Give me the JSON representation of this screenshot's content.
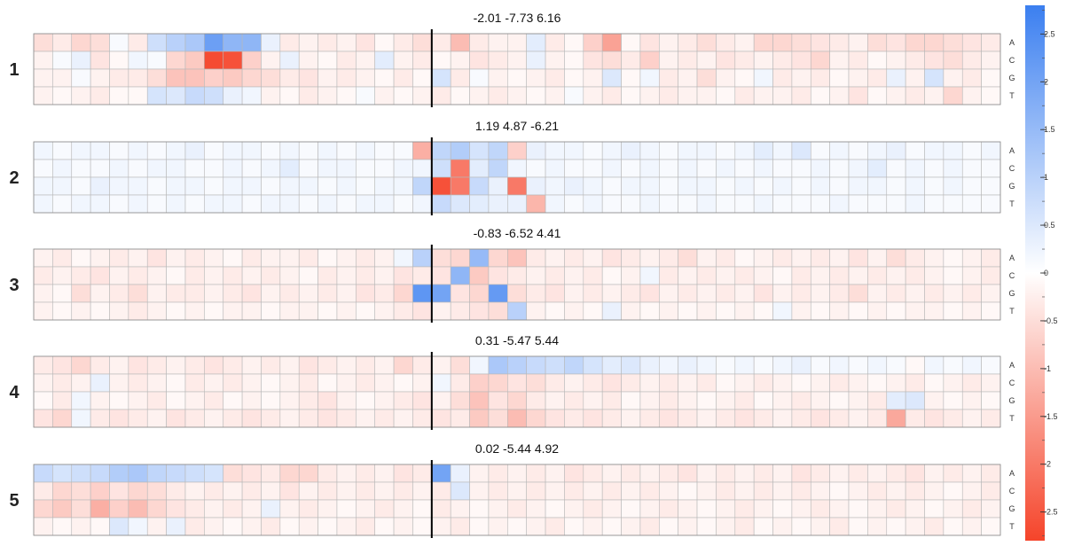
{
  "chart_data": {
    "type": "heatmap",
    "rows": [
      "A",
      "C",
      "G",
      "T"
    ],
    "n_positions": 51,
    "center_marker_after_position": 21,
    "color_scale": {
      "min": -2.8,
      "max": 2.8,
      "low_color": "#f5442a",
      "mid_color": "#ffffff",
      "high_color": "#3b7ff0",
      "ticks": [
        2.5,
        2,
        1.5,
        1,
        0.5,
        0,
        -0.5,
        -1,
        -1.5,
        -2,
        -2.5
      ],
      "tick_labels": [
        "2.5",
        "2",
        "1.5",
        "1",
        "0.5",
        "0",
        "-0.5",
        "-1",
        "-1.5",
        "-2",
        "-2.5"
      ]
    },
    "panels": [
      {
        "label": "1",
        "title": "-2.01 -7.73 6.16",
        "values": [
          [
            -0.5,
            -0.3,
            -0.6,
            -0.5,
            0.1,
            -0.3,
            0.7,
            1.0,
            1.2,
            2.1,
            1.6,
            1.6,
            0.3,
            -0.3,
            -0.2,
            -0.3,
            -0.2,
            -0.4,
            -0.1,
            -0.3,
            -0.5,
            -0.3,
            -1.0,
            -0.3,
            -0.2,
            -0.2,
            0.4,
            -0.3,
            -0.1,
            -0.7,
            -1.4,
            -0.1,
            -0.4,
            -0.2,
            -0.3,
            -0.5,
            -0.3,
            -0.2,
            -0.6,
            -0.6,
            -0.5,
            -0.4,
            -0.3,
            -0.2,
            -0.5,
            -0.4,
            -0.6,
            -0.6,
            -0.5,
            -0.4,
            -0.3
          ],
          [
            -0.2,
            0.1,
            0.3,
            -0.4,
            -0.1,
            0.2,
            0.1,
            -0.6,
            -0.8,
            -2.7,
            -2.6,
            -0.7,
            -0.2,
            0.3,
            -0.2,
            -0.1,
            -0.3,
            -0.2,
            0.4,
            -0.2,
            -0.3,
            -0.1,
            -0.2,
            -0.4,
            -0.3,
            -0.2,
            0.3,
            -0.2,
            -0.1,
            -0.4,
            -0.5,
            -0.3,
            -0.7,
            -0.2,
            -0.3,
            -0.2,
            -0.4,
            -0.3,
            -0.2,
            -0.3,
            -0.4,
            -0.6,
            -0.2,
            -0.3,
            -0.1,
            -0.2,
            -0.3,
            -0.4,
            -0.5,
            -0.3,
            -0.2
          ],
          [
            -0.2,
            -0.2,
            0.1,
            -0.2,
            -0.3,
            -0.3,
            -0.5,
            -0.9,
            -0.9,
            -0.7,
            -0.8,
            -0.6,
            -0.5,
            -0.3,
            -0.4,
            -0.2,
            -0.3,
            -0.2,
            -0.1,
            -0.3,
            -0.1,
            0.6,
            -0.3,
            0.1,
            -0.2,
            -0.1,
            -0.2,
            -0.3,
            -0.1,
            -0.2,
            0.5,
            -0.1,
            0.2,
            -0.3,
            -0.2,
            -0.5,
            -0.2,
            -0.1,
            0.2,
            -0.3,
            -0.2,
            -0.3,
            -0.1,
            -0.2,
            -0.3,
            0.3,
            -0.2,
            0.6,
            -0.2,
            -0.3,
            -0.1
          ],
          [
            -0.2,
            -0.1,
            -0.2,
            -0.3,
            -0.1,
            -0.1,
            0.6,
            0.5,
            0.8,
            0.7,
            0.3,
            0.2,
            -0.2,
            -0.1,
            -0.3,
            -0.2,
            -0.1,
            0.1,
            -0.2,
            -0.1,
            -0.2,
            -0.3,
            -0.1,
            -0.2,
            -0.3,
            -0.2,
            -0.1,
            -0.2,
            0.1,
            -0.2,
            -0.3,
            -0.1,
            -0.2,
            -0.3,
            -0.2,
            -0.2,
            -0.1,
            -0.3,
            -0.2,
            -0.2,
            -0.3,
            -0.1,
            -0.2,
            -0.4,
            -0.1,
            -0.2,
            -0.3,
            -0.2,
            -0.6,
            -0.2,
            -0.1
          ]
        ]
      },
      {
        "label": "2",
        "title": "1.19 4.87 -6.21",
        "values": [
          [
            0.2,
            0.1,
            0.2,
            0.2,
            0.1,
            0.2,
            0.1,
            0.2,
            0.3,
            0.1,
            0.2,
            0.2,
            0.1,
            0.2,
            0.1,
            0.2,
            0.1,
            0.2,
            0.1,
            0.1,
            -1.2,
            0.9,
            1.1,
            0.6,
            0.9,
            -0.7,
            0.3,
            0.2,
            0.2,
            0.1,
            0.2,
            0.3,
            0.2,
            0.1,
            0.2,
            0.2,
            0.1,
            0.2,
            0.4,
            0.2,
            0.5,
            0.1,
            0.2,
            0.1,
            0.2,
            0.3,
            0.1,
            0.2,
            0.2,
            0.1,
            0.2
          ],
          [
            0.1,
            0.2,
            0.1,
            0.1,
            0.2,
            0.1,
            0.2,
            0.2,
            0.1,
            0.1,
            0.2,
            0.1,
            0.2,
            0.4,
            0.1,
            0.2,
            0.2,
            0.1,
            0.1,
            0.2,
            0.2,
            0.7,
            -2.0,
            0.4,
            0.9,
            0.2,
            0.1,
            0.2,
            0.1,
            0.1,
            0.2,
            0.1,
            0.2,
            0.1,
            0.2,
            0.1,
            0.2,
            0.1,
            0.2,
            0.1,
            0.1,
            0.2,
            0.1,
            0.2,
            0.4,
            0.1,
            0.2,
            0.1,
            0.2,
            0.1,
            0.1
          ],
          [
            0.2,
            0.2,
            0.1,
            0.3,
            0.2,
            0.2,
            0.1,
            0.2,
            0.2,
            0.1,
            0.2,
            0.2,
            0.1,
            0.2,
            0.2,
            0.1,
            0.2,
            0.1,
            0.2,
            0.2,
            0.9,
            -2.6,
            -2.0,
            0.8,
            0.3,
            -2.0,
            0.3,
            0.2,
            0.3,
            0.2,
            0.1,
            0.2,
            0.2,
            0.1,
            0.2,
            0.2,
            0.1,
            0.2,
            0.1,
            0.2,
            0.1,
            0.2,
            0.1,
            0.2,
            0.2,
            0.1,
            0.2,
            0.1,
            0.2,
            0.1,
            0.1
          ],
          [
            0.2,
            0.1,
            0.2,
            0.2,
            0.1,
            0.2,
            0.1,
            0.2,
            0.1,
            0.2,
            0.2,
            0.1,
            0.2,
            0.2,
            0.1,
            0.2,
            0.1,
            0.2,
            0.2,
            0.1,
            0.2,
            0.8,
            0.5,
            0.4,
            0.3,
            0.3,
            -1.1,
            0.2,
            0.1,
            0.2,
            0.1,
            0.1,
            0.2,
            0.1,
            0.1,
            0.2,
            0.1,
            0.1,
            0.2,
            0.1,
            0.1,
            0.1,
            0.2,
            0.1,
            0.1,
            0.1,
            0.2,
            0.1,
            0.1,
            0.1,
            0.1
          ]
        ]
      },
      {
        "label": "3",
        "title": "-0.83 -6.52 4.41",
        "values": [
          [
            -0.2,
            -0.3,
            -0.1,
            -0.2,
            -0.3,
            -0.2,
            -0.4,
            -0.2,
            -0.3,
            -0.2,
            -0.1,
            -0.3,
            -0.2,
            -0.2,
            -0.3,
            -0.1,
            -0.2,
            -0.3,
            -0.2,
            0.2,
            1.0,
            -0.5,
            -0.6,
            1.5,
            -0.6,
            -0.9,
            -0.3,
            -0.2,
            -0.3,
            -0.2,
            -0.4,
            -0.3,
            -0.2,
            -0.3,
            -0.5,
            -0.2,
            -0.3,
            -0.1,
            -0.2,
            -0.3,
            -0.2,
            -0.3,
            -0.2,
            -0.4,
            -0.2,
            -0.5,
            -0.3,
            -0.2,
            -0.1,
            -0.2,
            -0.3
          ],
          [
            -0.3,
            -0.2,
            -0.3,
            -0.4,
            -0.2,
            -0.3,
            -0.2,
            -0.1,
            -0.3,
            -0.2,
            -0.3,
            -0.2,
            -0.3,
            -0.2,
            -0.1,
            -0.3,
            -0.2,
            -0.3,
            -0.2,
            -0.4,
            -0.3,
            -0.4,
            1.6,
            -0.8,
            -0.4,
            -0.3,
            -0.2,
            -0.3,
            -0.2,
            -0.3,
            -0.1,
            -0.2,
            0.2,
            -0.3,
            -0.2,
            -0.3,
            -0.2,
            -0.3,
            -0.2,
            -0.1,
            -0.3,
            -0.2,
            -0.3,
            -0.2,
            -0.3,
            -0.2,
            -0.3,
            -0.2,
            -0.1,
            -0.2,
            -0.3
          ],
          [
            -0.2,
            -0.1,
            -0.5,
            -0.2,
            -0.3,
            -0.5,
            -0.2,
            -0.3,
            -0.3,
            -0.2,
            -0.3,
            -0.4,
            -0.2,
            -0.3,
            -0.2,
            -0.3,
            -0.2,
            -0.4,
            -0.3,
            -0.6,
            2.3,
            2.0,
            -0.4,
            -0.6,
            2.2,
            -0.5,
            -0.3,
            -0.4,
            -0.2,
            -0.3,
            -0.2,
            -0.3,
            -0.4,
            -0.2,
            -0.3,
            -0.2,
            -0.3,
            -0.2,
            -0.4,
            -0.2,
            -0.3,
            -0.2,
            -0.3,
            -0.5,
            -0.2,
            -0.3,
            -0.2,
            -0.3,
            -0.2,
            -0.3,
            -0.2
          ],
          [
            -0.2,
            -0.1,
            -0.2,
            -0.1,
            -0.2,
            -0.3,
            -0.2,
            -0.1,
            -0.2,
            -0.1,
            -0.2,
            -0.2,
            -0.1,
            -0.2,
            -0.2,
            -0.1,
            -0.2,
            -0.1,
            -0.2,
            -0.3,
            -0.4,
            -0.2,
            -0.3,
            -0.4,
            -0.5,
            1.0,
            -0.2,
            -0.1,
            -0.2,
            -0.1,
            0.3,
            -0.2,
            -0.1,
            -0.2,
            -0.1,
            -0.2,
            -0.1,
            -0.2,
            -0.1,
            0.2,
            -0.2,
            -0.1,
            -0.2,
            -0.1,
            -0.2,
            -0.1,
            -0.2,
            -0.2,
            -0.1,
            -0.2,
            -0.1
          ]
        ]
      },
      {
        "label": "4",
        "title": "0.31 -5.47 5.44",
        "values": [
          [
            -0.3,
            -0.4,
            -0.6,
            -0.3,
            -0.2,
            -0.4,
            -0.3,
            -0.2,
            -0.3,
            -0.4,
            -0.3,
            -0.2,
            -0.3,
            -0.2,
            -0.4,
            -0.3,
            -0.2,
            -0.3,
            -0.2,
            -0.6,
            -0.3,
            -0.2,
            -0.5,
            0.2,
            1.2,
            1.0,
            0.8,
            0.7,
            0.9,
            0.6,
            0.4,
            0.5,
            0.3,
            0.2,
            0.3,
            0.2,
            0.1,
            0.2,
            0.1,
            0.2,
            0.3,
            0.1,
            0.2,
            0.1,
            0.2,
            0.1,
            -0.1,
            0.2,
            0.1,
            0.2,
            0.1
          ],
          [
            -0.2,
            -0.3,
            -0.2,
            0.3,
            -0.2,
            -0.3,
            -0.2,
            -0.1,
            -0.3,
            -0.2,
            -0.3,
            -0.2,
            -0.1,
            -0.2,
            -0.3,
            -0.1,
            -0.2,
            -0.3,
            -0.2,
            -0.1,
            -0.2,
            0.2,
            -0.3,
            -0.7,
            -0.6,
            -0.4,
            -0.5,
            -0.3,
            -0.2,
            -0.3,
            -0.4,
            -0.3,
            -0.2,
            -0.3,
            -0.2,
            -0.3,
            -0.1,
            -0.2,
            -0.3,
            -0.2,
            -0.1,
            -0.2,
            -0.3,
            -0.2,
            -0.1,
            -0.2,
            -0.3,
            -0.1,
            -0.2,
            -0.3,
            -0.2
          ],
          [
            -0.1,
            -0.3,
            0.2,
            -0.2,
            -0.1,
            -0.2,
            -0.3,
            -0.1,
            -0.2,
            -0.3,
            -0.1,
            -0.2,
            -0.1,
            -0.2,
            -0.3,
            -0.4,
            -0.2,
            -0.1,
            -0.2,
            -0.3,
            -0.4,
            -0.2,
            -0.5,
            -0.9,
            -0.4,
            -0.6,
            -0.3,
            -0.2,
            -0.3,
            -0.2,
            -0.3,
            -0.1,
            -0.2,
            -0.3,
            -0.2,
            -0.1,
            -0.2,
            -0.3,
            -0.1,
            -0.2,
            -0.3,
            -0.2,
            -0.1,
            -0.2,
            -0.3,
            0.4,
            0.5,
            -0.2,
            -0.1,
            -0.2,
            -0.1
          ],
          [
            -0.4,
            -0.6,
            0.2,
            -0.3,
            -0.4,
            -0.3,
            -0.2,
            -0.4,
            -0.3,
            -0.2,
            -0.3,
            -0.4,
            -0.3,
            -0.2,
            -0.3,
            -0.4,
            -0.3,
            -0.2,
            -0.3,
            -0.2,
            -0.3,
            -0.4,
            -0.3,
            -0.8,
            -0.5,
            -1.0,
            -0.6,
            -0.4,
            -0.3,
            -0.4,
            -0.3,
            -0.2,
            -0.3,
            -0.4,
            -0.3,
            -0.2,
            -0.3,
            -0.4,
            -0.3,
            -0.2,
            -0.3,
            -0.4,
            -0.3,
            -0.2,
            -0.3,
            -1.3,
            -0.3,
            -0.4,
            -0.3,
            -0.2,
            -0.3
          ]
        ]
      },
      {
        "label": "5",
        "title": "0.02 -5.44 4.92",
        "values": [
          [
            0.8,
            0.6,
            0.7,
            0.8,
            1.1,
            1.2,
            0.9,
            0.8,
            0.7,
            0.6,
            -0.5,
            -0.4,
            -0.3,
            -0.6,
            -0.6,
            -0.3,
            -0.2,
            -0.3,
            -0.2,
            -0.4,
            -0.3,
            2.0,
            0.3,
            -0.2,
            -0.3,
            -0.2,
            -0.3,
            -0.2,
            -0.4,
            -0.3,
            -0.2,
            -0.3,
            -0.2,
            -0.3,
            -0.4,
            -0.2,
            -0.3,
            -0.2,
            -0.3,
            -0.2,
            -0.4,
            -0.3,
            -0.2,
            -0.3,
            -0.2,
            -0.3,
            -0.4,
            -0.2,
            -0.3,
            -0.2,
            -0.3
          ],
          [
            -0.3,
            -0.6,
            -0.5,
            -0.7,
            -0.4,
            -0.6,
            -0.5,
            -0.3,
            -0.2,
            -0.3,
            -0.2,
            -0.3,
            -0.2,
            -0.4,
            -0.2,
            -0.3,
            -0.2,
            -0.3,
            -0.2,
            -0.3,
            -0.2,
            -0.3,
            0.5,
            -0.2,
            -0.3,
            -0.2,
            -0.3,
            -0.2,
            -0.3,
            -0.2,
            -0.3,
            -0.2,
            -0.3,
            -0.2,
            -0.1,
            -0.2,
            -0.3,
            -0.2,
            -0.3,
            -0.2,
            -0.3,
            -0.2,
            -0.1,
            -0.2,
            -0.3,
            -0.2,
            -0.3,
            -0.2,
            -0.1,
            -0.2,
            -0.3
          ],
          [
            -0.6,
            -0.8,
            -0.5,
            -1.2,
            -0.7,
            -1.0,
            -0.6,
            -0.4,
            -0.3,
            -0.2,
            -0.3,
            -0.2,
            0.3,
            -0.2,
            -0.3,
            -0.2,
            -0.1,
            -0.2,
            -0.3,
            -0.2,
            -0.1,
            -0.3,
            -0.2,
            -0.1,
            -0.2,
            -0.3,
            -0.2,
            -0.1,
            -0.2,
            -0.3,
            -0.2,
            -0.1,
            -0.2,
            -0.3,
            -0.2,
            -0.1,
            -0.2,
            -0.3,
            -0.2,
            -0.1,
            -0.2,
            -0.3,
            -0.2,
            -0.1,
            -0.2,
            -0.3,
            -0.2,
            -0.1,
            -0.2,
            -0.3,
            -0.2
          ],
          [
            -0.2,
            -0.1,
            -0.2,
            -0.1,
            0.5,
            0.2,
            -0.2,
            0.3,
            -0.3,
            -0.2,
            -0.1,
            -0.2,
            -0.3,
            -0.1,
            -0.2,
            -0.1,
            -0.2,
            -0.3,
            -0.1,
            -0.2,
            -0.1,
            -0.2,
            -0.3,
            -0.1,
            -0.2,
            -0.1,
            -0.2,
            -0.3,
            -0.1,
            -0.2,
            -0.1,
            -0.2,
            -0.3,
            -0.1,
            -0.2,
            -0.1,
            -0.2,
            -0.3,
            -0.1,
            -0.2,
            -0.1,
            -0.2,
            -0.3,
            -0.1,
            -0.2,
            -0.1,
            -0.2,
            -0.3,
            -0.1,
            -0.2,
            -0.1
          ]
        ]
      }
    ]
  }
}
